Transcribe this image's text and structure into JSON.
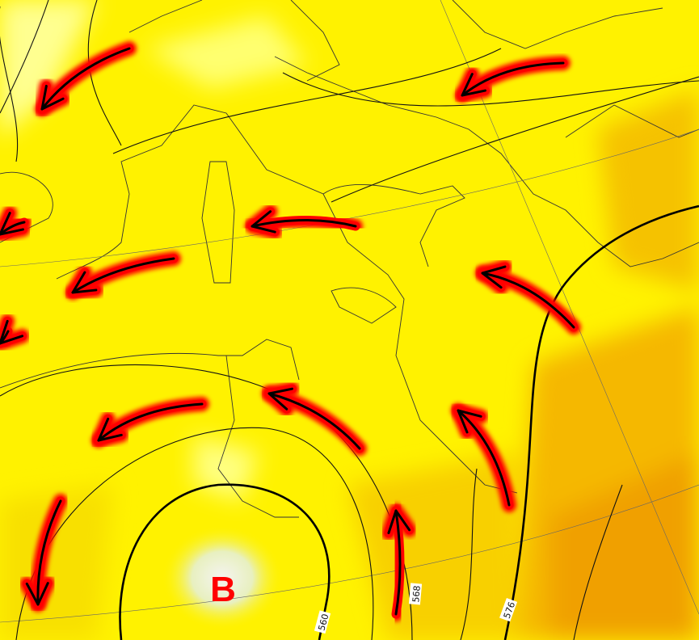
{
  "map": {
    "low_pressure_label": "B",
    "contour_labels": [
      "560",
      "568",
      "576"
    ],
    "colors": {
      "field_yellow": "#fff200",
      "field_light": "#ffff80",
      "field_orange": "#f5b800",
      "field_deep_orange": "#f0a000",
      "arrow_glow": "#ff0000",
      "arrow_line": "#000000",
      "low_label": "#ff0000"
    },
    "wind_arrows_icon": "curved-arrow-icon"
  }
}
